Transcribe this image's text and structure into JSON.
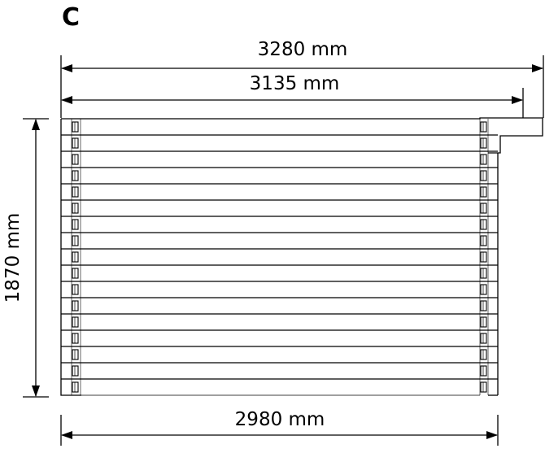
{
  "panel_label": "C",
  "dimensions": {
    "overall_width": "3280 mm",
    "wall_width": "3135 mm",
    "height": "1870 mm",
    "base_width": "2980 mm"
  },
  "wall": {
    "log_count": 17
  }
}
